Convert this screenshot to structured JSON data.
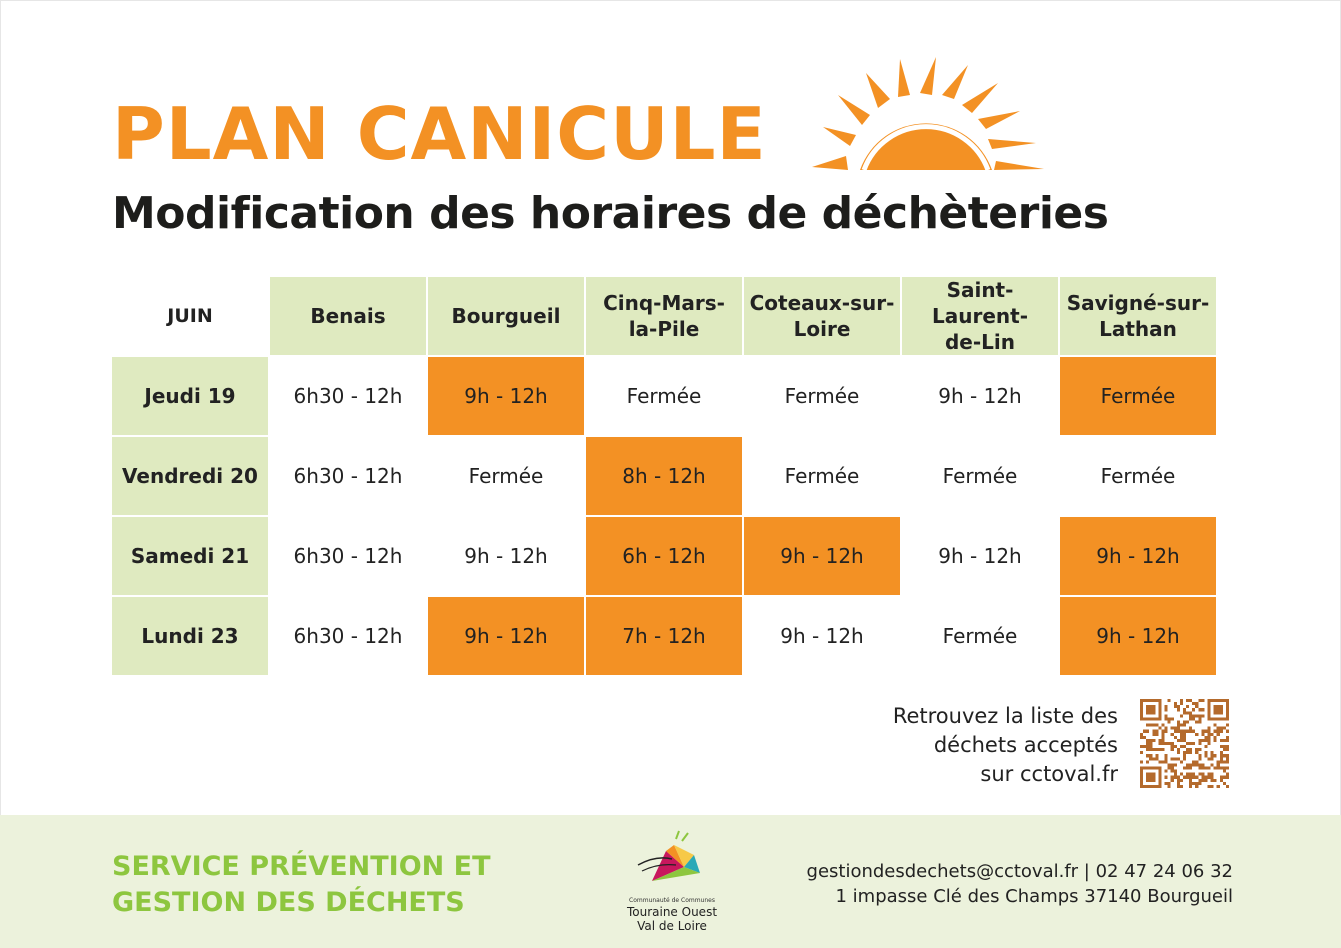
{
  "header": {
    "title": "PLAN CANICULE",
    "subtitle": "Modification des horaires de déchèteries"
  },
  "table": {
    "corner": "JUIN",
    "columns": [
      "Benais",
      "Bourgueil",
      "Cinq-Mars-\nla-Pile",
      "Coteaux-sur-\nLoire",
      "Saint-\nLaurent-\nde-Lin",
      "Savigné-sur-\nLathan"
    ],
    "rows": [
      {
        "day": "Jeudi 19",
        "cells": [
          {
            "text": "6h30 - 12h",
            "changed": false
          },
          {
            "text": "9h - 12h",
            "changed": true
          },
          {
            "text": "Fermée",
            "changed": false
          },
          {
            "text": "Fermée",
            "changed": false
          },
          {
            "text": "9h - 12h",
            "changed": false
          },
          {
            "text": "Fermée",
            "changed": true
          }
        ]
      },
      {
        "day": "Vendredi 20",
        "cells": [
          {
            "text": "6h30 - 12h",
            "changed": false
          },
          {
            "text": "Fermée",
            "changed": false
          },
          {
            "text": "8h - 12h",
            "changed": true
          },
          {
            "text": "Fermée",
            "changed": false
          },
          {
            "text": "Fermée",
            "changed": false
          },
          {
            "text": "Fermée",
            "changed": false
          }
        ]
      },
      {
        "day": "Samedi 21",
        "cells": [
          {
            "text": "6h30 - 12h",
            "changed": false
          },
          {
            "text": "9h - 12h",
            "changed": false
          },
          {
            "text": "6h - 12h",
            "changed": true
          },
          {
            "text": "9h - 12h",
            "changed": true
          },
          {
            "text": "9h - 12h",
            "changed": false
          },
          {
            "text": "9h - 12h",
            "changed": true
          }
        ]
      },
      {
        "day": "Lundi 23",
        "cells": [
          {
            "text": "6h30 - 12h",
            "changed": false
          },
          {
            "text": "9h - 12h",
            "changed": true
          },
          {
            "text": "7h - 12h",
            "changed": true
          },
          {
            "text": "9h - 12h",
            "changed": false
          },
          {
            "text": "Fermée",
            "changed": false
          },
          {
            "text": "9h - 12h",
            "changed": true
          }
        ]
      }
    ]
  },
  "info": {
    "lines": [
      "Retrouvez la liste des",
      "déchets acceptés",
      "sur cctoval.fr"
    ]
  },
  "footer": {
    "service_lines": [
      "SERVICE PRÉVENTION ET",
      "GESTION DES DÉCHETS"
    ],
    "logo_small": "Communauté de Communes",
    "logo_name_lines": [
      "Touraine Ouest",
      "Val de Loire"
    ],
    "contact_lines": [
      "gestiondesdechets@cctoval.fr | 02 47 24 06 32",
      "1 impasse Clé des Champs 37140 Bourgueil"
    ]
  },
  "colors": {
    "title_orange": "#f39124",
    "highlight_orange": "#f39124",
    "header_green": "#dfeac0",
    "footer_bg": "#ecf2dc",
    "service_green": "#8dc63f"
  },
  "icons": [
    "sun-icon",
    "qr-code",
    "cctoval-logo"
  ]
}
